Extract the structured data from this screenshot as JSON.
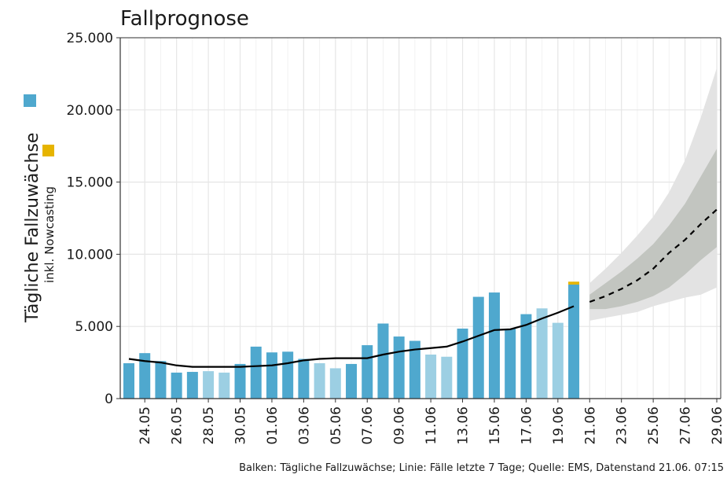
{
  "chart_data": {
    "type": "bar",
    "title": "Fallprognose",
    "y_label": "Tägliche Fallzuwächse",
    "y_label_sub": "inkl. Nowcasting",
    "caption": "Balken: Tägliche Fallzuwächse; Linie: Fälle letzte 7 Tage; Quelle: EMS, Datenstand 21.06. 07:15",
    "categories": [
      null,
      "24.05",
      null,
      "26.05",
      null,
      "28.05",
      null,
      "30.05",
      null,
      "01.06",
      null,
      "03.06",
      null,
      "05.06",
      null,
      "07.06",
      null,
      "09.06",
      null,
      "11.06",
      null,
      "13.06",
      null,
      "15.06",
      null,
      "17.06",
      null,
      "19.06",
      null,
      "21.06",
      null,
      "23.06",
      null,
      "25.06",
      null,
      "27.06",
      null,
      "29.06"
    ],
    "ylim": [
      0,
      25000
    ],
    "yticks": [
      0,
      {
        "value": 5000,
        "label": "5.000"
      },
      {
        "value": 10000,
        "label": "10.000"
      },
      {
        "value": 15000,
        "label": "15.000"
      },
      {
        "value": 20000,
        "label": "20.000"
      },
      {
        "value": 25000,
        "label": "25.000"
      }
    ],
    "grid": true,
    "series": [
      {
        "kind": "bar",
        "color": "#4fa8ce",
        "light_color": "#9ccfe3",
        "light": [
          false,
          false,
          false,
          false,
          false,
          true,
          true,
          false,
          false,
          false,
          false,
          false,
          true,
          true,
          false,
          false,
          false,
          false,
          false,
          true,
          true,
          false,
          false,
          false,
          false,
          false,
          true,
          true,
          false
        ],
        "values": [
          2450,
          3150,
          2600,
          1800,
          1850,
          1900,
          1800,
          2400,
          3600,
          3200,
          3250,
          2750,
          2450,
          2100,
          2400,
          3700,
          5200,
          4300,
          4000,
          3050,
          2900,
          4850,
          7050,
          7350,
          4850,
          5850,
          6250,
          5250,
          7900,
          null,
          null,
          null,
          null,
          null,
          null,
          null,
          null,
          null
        ]
      },
      {
        "kind": "stack",
        "color": "#e6b400",
        "values": [
          null,
          null,
          null,
          null,
          null,
          null,
          null,
          null,
          null,
          null,
          null,
          null,
          null,
          null,
          null,
          null,
          null,
          null,
          null,
          null,
          null,
          null,
          null,
          null,
          null,
          null,
          null,
          null,
          200,
          null,
          null,
          null,
          null,
          null,
          null,
          null,
          null,
          null
        ]
      },
      {
        "kind": "line",
        "color": "#000000",
        "values": [
          2750,
          2600,
          2500,
          2300,
          2200,
          2200,
          2200,
          2200,
          2250,
          2300,
          2450,
          2650,
          2750,
          2800,
          2800,
          2800,
          3050,
          3250,
          3400,
          3500,
          3600,
          3950,
          4350,
          4750,
          4800,
          5100,
          5550,
          5950,
          6400,
          null,
          null,
          null,
          null,
          null,
          null,
          null,
          null,
          null
        ]
      },
      {
        "kind": "band",
        "color": "#e3e3e3",
        "low": [
          null,
          null,
          null,
          null,
          null,
          null,
          null,
          null,
          null,
          null,
          null,
          null,
          null,
          null,
          null,
          null,
          null,
          null,
          null,
          null,
          null,
          null,
          null,
          null,
          null,
          null,
          null,
          null,
          null,
          5400,
          5600,
          5800,
          6000,
          6400,
          6700,
          7000,
          7200,
          7700
        ],
        "high": [
          null,
          null,
          null,
          null,
          null,
          null,
          null,
          null,
          null,
          null,
          null,
          null,
          null,
          null,
          null,
          null,
          null,
          null,
          null,
          null,
          null,
          null,
          null,
          null,
          null,
          null,
          null,
          null,
          null,
          8000,
          9000,
          10100,
          11300,
          12600,
          14300,
          16500,
          19500,
          22900
        ]
      },
      {
        "kind": "band",
        "color": "#c2c5c0",
        "low": [
          null,
          null,
          null,
          null,
          null,
          null,
          null,
          null,
          null,
          null,
          null,
          null,
          null,
          null,
          null,
          null,
          null,
          null,
          null,
          null,
          null,
          null,
          null,
          null,
          null,
          null,
          null,
          null,
          null,
          6200,
          6200,
          6400,
          6700,
          7100,
          7700,
          8600,
          9600,
          10500
        ],
        "high": [
          null,
          null,
          null,
          null,
          null,
          null,
          null,
          null,
          null,
          null,
          null,
          null,
          null,
          null,
          null,
          null,
          null,
          null,
          null,
          null,
          null,
          null,
          null,
          null,
          null,
          null,
          null,
          null,
          null,
          7200,
          8000,
          8800,
          9700,
          10700,
          12000,
          13500,
          15400,
          17300
        ]
      },
      {
        "kind": "dashed",
        "color": "#000000",
        "values": [
          null,
          null,
          null,
          null,
          null,
          null,
          null,
          null,
          null,
          null,
          null,
          null,
          null,
          null,
          null,
          null,
          null,
          null,
          null,
          null,
          null,
          null,
          null,
          null,
          null,
          null,
          null,
          null,
          null,
          6700,
          7100,
          7600,
          8200,
          9000,
          10100,
          11000,
          12100,
          13100
        ]
      }
    ]
  }
}
